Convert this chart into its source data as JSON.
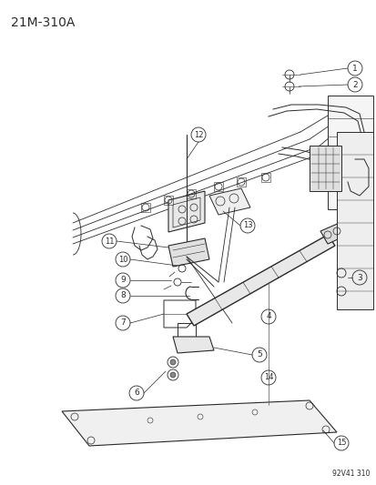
{
  "title": "21M-310A",
  "watermark": "92V41 310",
  "background_color": "#ffffff",
  "line_color": "#2a2a2a",
  "figsize": [
    4.14,
    5.33
  ],
  "dpi": 100,
  "title_fontsize": 10,
  "label_fontsize": 6.5,
  "watermark_fontsize": 5.5
}
